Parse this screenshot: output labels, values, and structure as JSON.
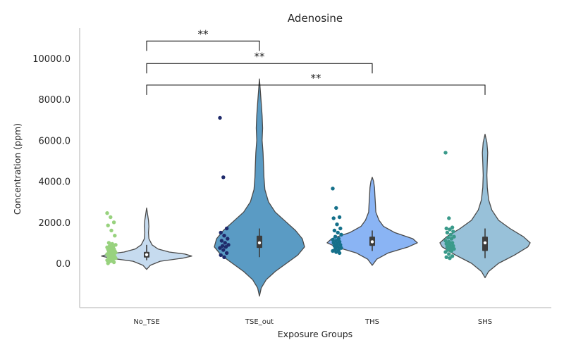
{
  "chart_data": {
    "type": "violin",
    "title": "Adenosine",
    "xlabel": "Exposure Groups",
    "ylabel": "Concentration (ppm)",
    "ylim": [
      -2200,
      11800
    ],
    "yticks": [
      0,
      2000,
      4000,
      6000,
      8000,
      10000
    ],
    "ytick_labels": [
      "0.0",
      "2000.0",
      "4000.0",
      "6000.0",
      "8000.0",
      "10000.0"
    ],
    "categories": [
      "No_TSE",
      "TSE_out",
      "THS",
      "SHS"
    ],
    "violin_colors": [
      "#c6dbef",
      "#5a9bc4",
      "#8ab4f4",
      "#98c1d9"
    ],
    "point_colors": [
      "#98d27e",
      "#1f2a6b",
      "#15708a",
      "#3a9a8a"
    ],
    "groups": [
      {
        "name": "No_TSE",
        "points": [
          2450,
          2250,
          2000,
          1850,
          1600,
          1350,
          1000,
          950,
          900,
          850,
          800,
          780,
          750,
          700,
          680,
          650,
          600,
          580,
          550,
          520,
          500,
          480,
          450,
          420,
          400,
          380,
          350,
          320,
          300,
          280,
          250,
          220,
          200,
          150,
          100,
          50,
          0
        ],
        "q1": 280,
        "median": 420,
        "q3": 560,
        "whisker_low": 150,
        "whisker_high": 900,
        "density": [
          [
            -300,
            0
          ],
          [
            -100,
            0.08
          ],
          [
            100,
            0.3
          ],
          [
            250,
            0.8
          ],
          [
            350,
            1.0
          ],
          [
            450,
            0.85
          ],
          [
            550,
            0.5
          ],
          [
            700,
            0.25
          ],
          [
            900,
            0.12
          ],
          [
            1200,
            0.05
          ],
          [
            1500,
            0.04
          ],
          [
            1800,
            0.05
          ],
          [
            2100,
            0.04
          ],
          [
            2400,
            0.02
          ],
          [
            2700,
            0
          ]
        ]
      },
      {
        "name": "TSE_out",
        "points": [
          7100,
          4200,
          1700,
          1500,
          1350,
          1200,
          1100,
          1000,
          900,
          850,
          800,
          750,
          650,
          500,
          400,
          300
        ],
        "q1": 750,
        "median": 1000,
        "q3": 1350,
        "whisker_low": 300,
        "whisker_high": 1700,
        "density": [
          [
            -1600,
            0
          ],
          [
            -1200,
            0.04
          ],
          [
            -800,
            0.15
          ],
          [
            -400,
            0.35
          ],
          [
            0,
            0.6
          ],
          [
            400,
            0.85
          ],
          [
            800,
            1.0
          ],
          [
            1200,
            0.95
          ],
          [
            1600,
            0.8
          ],
          [
            2000,
            0.6
          ],
          [
            2500,
            0.35
          ],
          [
            3000,
            0.2
          ],
          [
            3600,
            0.12
          ],
          [
            4200,
            0.1
          ],
          [
            4800,
            0.09
          ],
          [
            5400,
            0.08
          ],
          [
            6000,
            0.06
          ],
          [
            6600,
            0.07
          ],
          [
            7200,
            0.06
          ],
          [
            7800,
            0.04
          ],
          [
            8400,
            0.02
          ],
          [
            9000,
            0
          ]
        ]
      },
      {
        "name": "THS",
        "points": [
          3650,
          2700,
          2250,
          2200,
          1900,
          1700,
          1600,
          1500,
          1400,
          1300,
          1200,
          1150,
          1100,
          1050,
          1000,
          950,
          900,
          850,
          800,
          750,
          700,
          650,
          600,
          550,
          500
        ],
        "q1": 850,
        "median": 1050,
        "q3": 1300,
        "whisker_low": 600,
        "whisker_high": 1600,
        "density": [
          [
            -100,
            0
          ],
          [
            200,
            0.1
          ],
          [
            500,
            0.35
          ],
          [
            800,
            0.8
          ],
          [
            1000,
            1.0
          ],
          [
            1200,
            0.9
          ],
          [
            1500,
            0.5
          ],
          [
            1800,
            0.25
          ],
          [
            2100,
            0.15
          ],
          [
            2500,
            0.08
          ],
          [
            2900,
            0.07
          ],
          [
            3300,
            0.06
          ],
          [
            3700,
            0.05
          ],
          [
            4000,
            0.03
          ],
          [
            4200,
            0
          ]
        ]
      },
      {
        "name": "SHS",
        "points": [
          5400,
          2200,
          1750,
          1700,
          1650,
          1550,
          1500,
          1400,
          1300,
          1250,
          1200,
          1100,
          1050,
          1000,
          950,
          900,
          850,
          800,
          750,
          700,
          650,
          600,
          550,
          450,
          350,
          300,
          250
        ],
        "q1": 600,
        "median": 1000,
        "q3": 1300,
        "whisker_low": 250,
        "whisker_high": 1700,
        "density": [
          [
            -700,
            0
          ],
          [
            -400,
            0.08
          ],
          [
            0,
            0.3
          ],
          [
            400,
            0.65
          ],
          [
            800,
            0.95
          ],
          [
            1000,
            1.0
          ],
          [
            1300,
            0.85
          ],
          [
            1700,
            0.55
          ],
          [
            2100,
            0.3
          ],
          [
            2600,
            0.15
          ],
          [
            3100,
            0.08
          ],
          [
            3700,
            0.05
          ],
          [
            4300,
            0.04
          ],
          [
            4900,
            0.05
          ],
          [
            5400,
            0.06
          ],
          [
            5900,
            0.04
          ],
          [
            6300,
            0
          ]
        ]
      }
    ],
    "significance": [
      {
        "from": "No_TSE",
        "to": "TSE_out",
        "label": "**",
        "y": 10850
      },
      {
        "from": "No_TSE",
        "to": "THS",
        "label": "**",
        "y": 9750
      },
      {
        "from": "No_TSE",
        "to": "SHS",
        "label": "**",
        "y": 8700
      }
    ]
  }
}
